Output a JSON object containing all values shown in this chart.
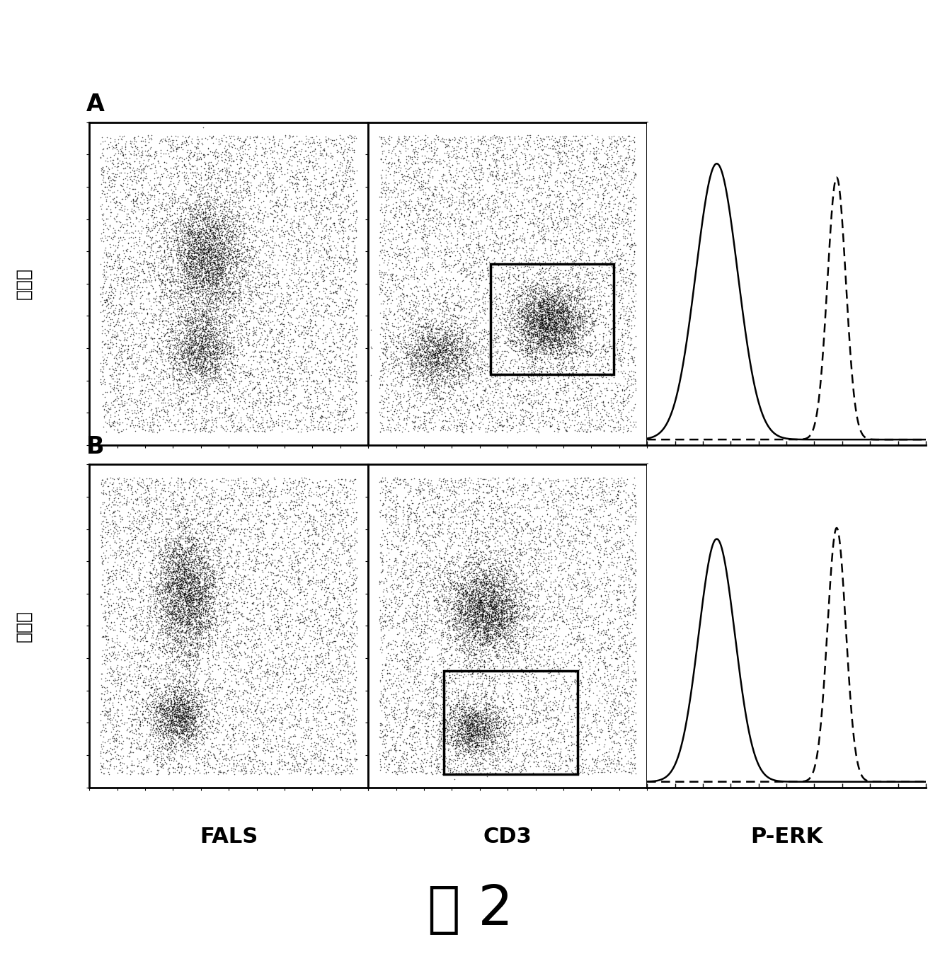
{
  "title": "图 2",
  "row_labels": [
    "侧散射",
    "侧散射"
  ],
  "col_labels_bottom": [
    "FALS",
    "CD3",
    "P-ERK"
  ],
  "panel_labels": [
    "A",
    "B"
  ],
  "background_color": "#ffffff",
  "scatter_color": "#000000",
  "panel_label_fontsize": 24,
  "axis_label_fontsize": 22,
  "title_fontsize": 56,
  "row_label_fontsize": 18,
  "col_label_fontsize": 22,
  "n_background": 8000,
  "n_cluster1": 3000,
  "n_cluster2": 1500
}
